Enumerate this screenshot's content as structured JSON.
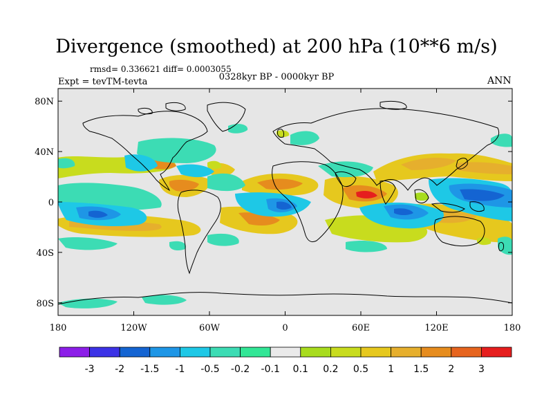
{
  "title": "Divergence (smoothed) at 200 hPa (10**6 m/s)",
  "stats": "rmsd= 0.336621 diff= 0.0003055",
  "experiment": "Expt = tevTM-tevta",
  "period": "0328kyr BP - 0000kyr BP",
  "season": "ANN",
  "y_ticks": [
    "80N",
    "40N",
    "0",
    "40S",
    "80S"
  ],
  "x_ticks": [
    "180",
    "120W",
    "60W",
    "0",
    "60E",
    "120E",
    "180"
  ],
  "colorbar": {
    "labels": [
      "-3",
      "-2",
      "-1.5",
      "-1",
      "-0.5",
      "-0.2",
      "-0.1",
      "0.1",
      "0.2",
      "0.5",
      "1",
      "1.5",
      "2",
      "3"
    ],
    "colors": [
      "#8c1ee8",
      "#3c32e6",
      "#1464d2",
      "#1e96e6",
      "#1ec8e6",
      "#3cdcb4",
      "#32e696",
      "#eaeaea",
      "#a8dc1e",
      "#c8dc1e",
      "#e6c81e",
      "#e6af2d",
      "#e68c1e",
      "#e6641e",
      "#e61e1e"
    ]
  },
  "colors": {
    "background": "#e6e6e6",
    "coast": "#000000"
  }
}
